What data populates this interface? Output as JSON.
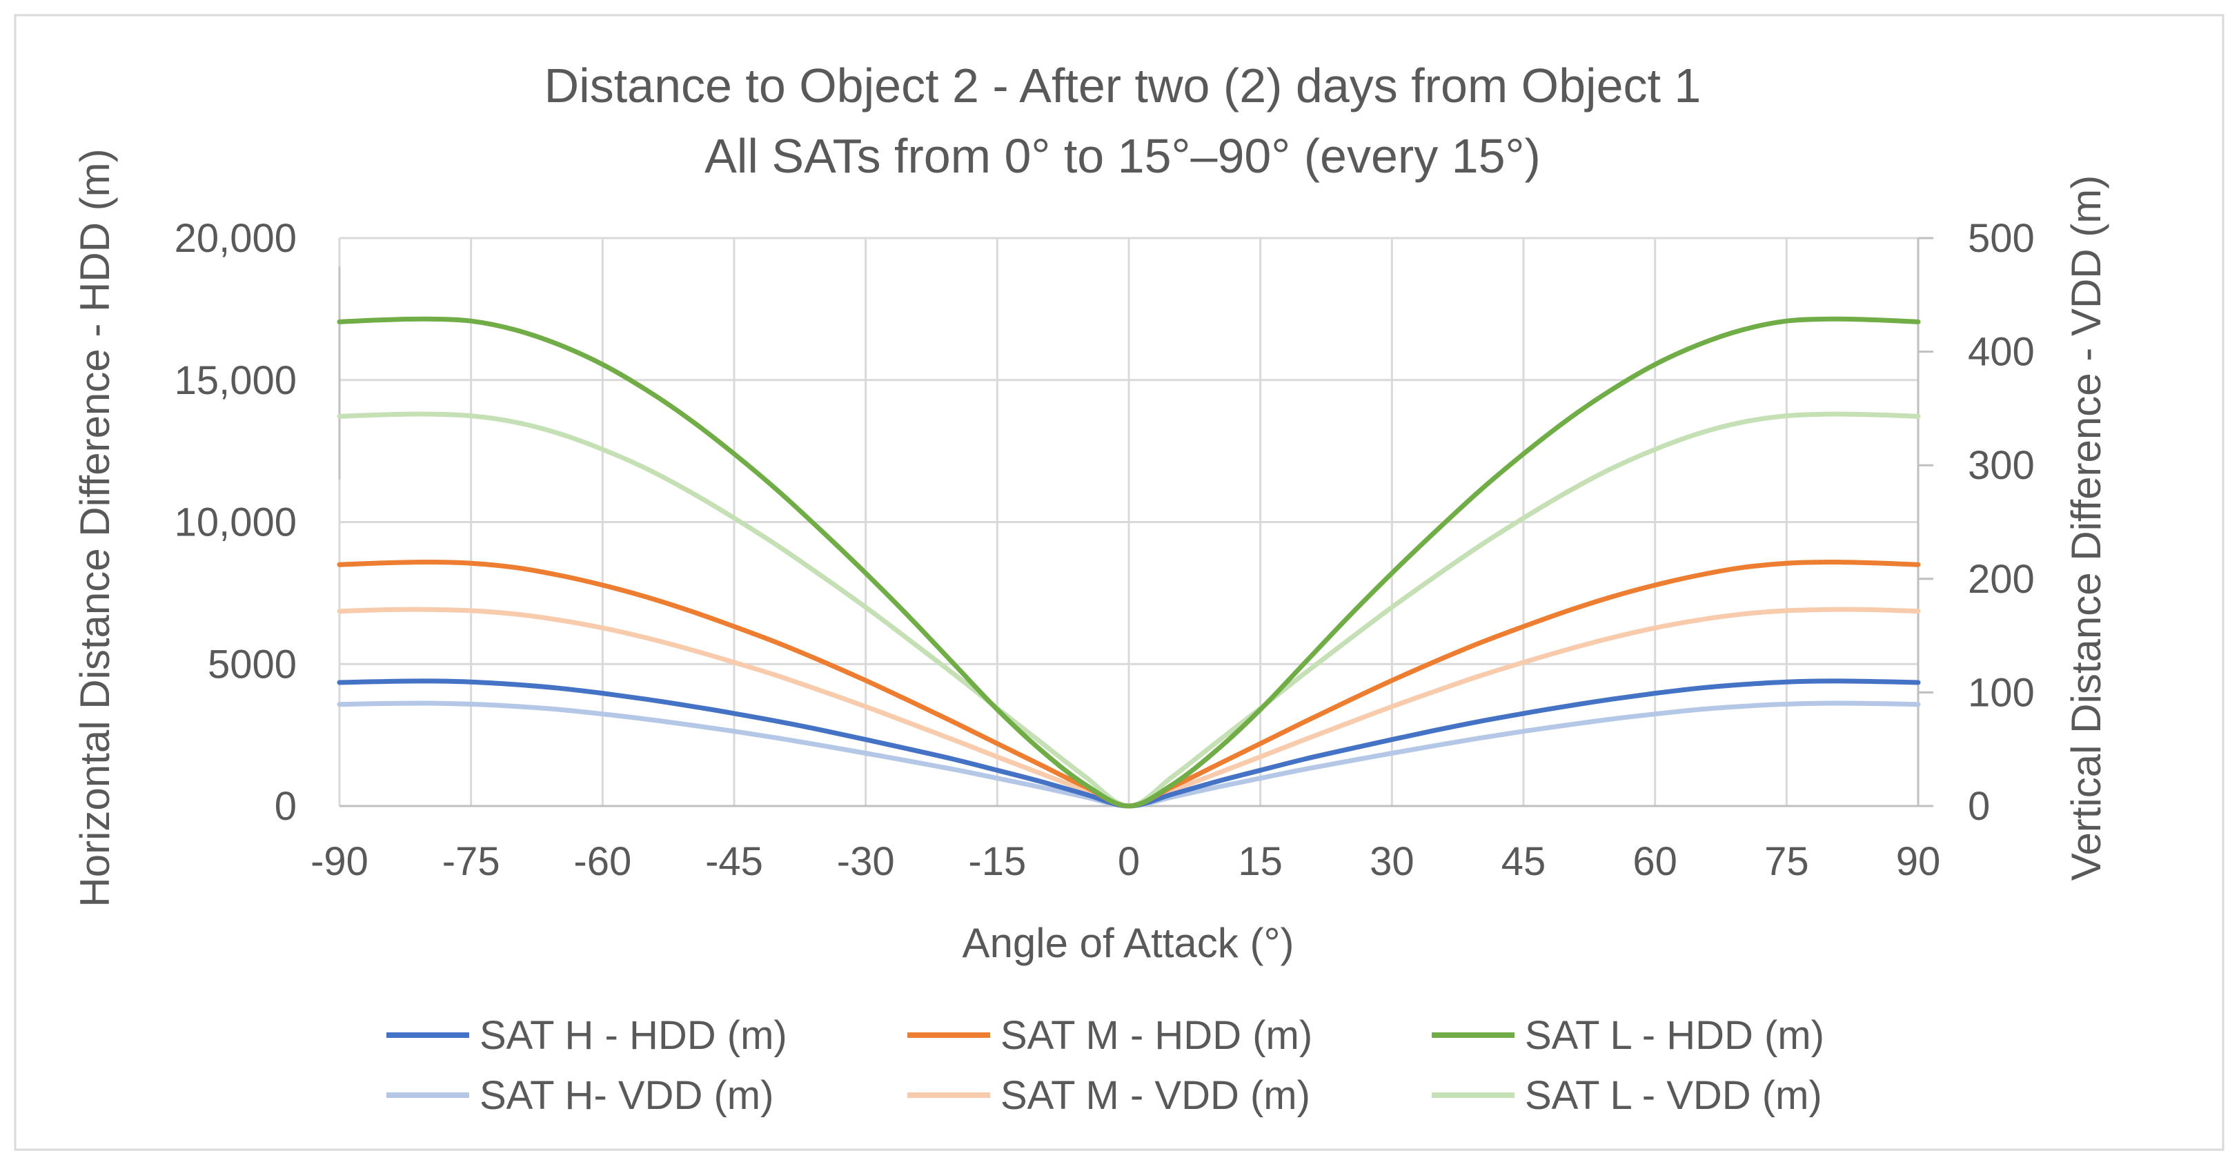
{
  "chart_data": {
    "type": "line",
    "title": [
      "Distance to Object 2 - After two (2) days from Object 1",
      "All SATs from 0° to 15°–90° (every 15°)"
    ],
    "xlabel": "Angle of Attack (°)",
    "ylabel": "Horizontal Distance Difference - HDD (m)",
    "y2label": "Vertical Distance Difference - VDD (m)",
    "xlim": [
      -90,
      90
    ],
    "ylim": [
      0,
      20000
    ],
    "y2lim": [
      0,
      500
    ],
    "x_ticks": [
      "-90",
      "-75",
      "-60",
      "-45",
      "-30",
      "-15",
      "0",
      "15",
      "30",
      "45",
      "60",
      "75",
      "90"
    ],
    "y_ticks": [
      "0",
      "5000",
      "10,000",
      "15,000",
      "20,000"
    ],
    "y2_ticks": [
      "0",
      "100",
      "200",
      "300",
      "400",
      "500"
    ],
    "grid": true,
    "legend_position": "bottom",
    "x": [
      -90,
      -85,
      -80,
      -75,
      -70,
      -65,
      -60,
      -55,
      -50,
      -45,
      -40,
      -35,
      -30,
      -25,
      -20,
      -15,
      -10,
      -5,
      0,
      5,
      10,
      15,
      20,
      25,
      30,
      35,
      40,
      45,
      50,
      55,
      60,
      65,
      70,
      75,
      80,
      85,
      90
    ],
    "series": [
      {
        "name": "SAT H - HDD (m)",
        "axis": "left",
        "color": "#4472c4",
        "values": [
          4350,
          4385,
          4400,
          4370,
          4280,
          4150,
          3970,
          3760,
          3520,
          3260,
          2980,
          2670,
          2340,
          2000,
          1650,
          1260,
          860,
          420,
          0,
          420,
          860,
          1260,
          1650,
          2000,
          2340,
          2670,
          2980,
          3260,
          3520,
          3760,
          3970,
          4150,
          4280,
          4370,
          4400,
          4385,
          4350
        ]
      },
      {
        "name": "SAT M - HDD (m)",
        "axis": "left",
        "color": "#ed7d31",
        "values": [
          8500,
          8560,
          8590,
          8550,
          8400,
          8130,
          7780,
          7360,
          6870,
          6320,
          5740,
          5100,
          4420,
          3700,
          2960,
          2200,
          1440,
          680,
          0,
          680,
          1440,
          2200,
          2960,
          3700,
          4420,
          5100,
          5740,
          6320,
          6870,
          7360,
          7780,
          8130,
          8400,
          8550,
          8590,
          8560,
          8500
        ]
      },
      {
        "name": "SAT L - HDD (m)",
        "axis": "left",
        "color": "#70ad47",
        "values": [
          17050,
          17120,
          17150,
          17080,
          16770,
          16250,
          15550,
          14650,
          13600,
          12400,
          11100,
          9680,
          8200,
          6650,
          5020,
          3400,
          1960,
          760,
          0,
          760,
          1960,
          3400,
          5020,
          6650,
          8200,
          9680,
          11100,
          12400,
          13600,
          14650,
          15550,
          16250,
          16770,
          17080,
          17150,
          17120,
          17050
        ]
      },
      {
        "name": "SAT H- VDD (m)",
        "axis": "right",
        "color": "#b4c7e7",
        "values": [
          89.5,
          90.2,
          90.5,
          89.7,
          87.8,
          85.0,
          81.0,
          76.5,
          71.3,
          65.8,
          59.8,
          53.3,
          46.5,
          39.5,
          32.3,
          24.5,
          16.5,
          8.0,
          0,
          8.0,
          16.5,
          24.5,
          32.3,
          39.5,
          46.5,
          53.3,
          59.8,
          65.8,
          71.3,
          76.5,
          81.0,
          85.0,
          87.8,
          89.7,
          90.5,
          90.2,
          89.5
        ]
      },
      {
        "name": "SAT M - VDD (m)",
        "axis": "right",
        "color": "#f8cbad",
        "values": [
          171.5,
          172.8,
          173.0,
          172.0,
          169.0,
          163.8,
          156.8,
          148.0,
          137.8,
          126.5,
          114.5,
          101.3,
          87.5,
          73.0,
          58.3,
          43.3,
          28.5,
          13.8,
          0,
          13.8,
          28.5,
          43.3,
          58.3,
          73.0,
          87.5,
          101.3,
          114.5,
          126.5,
          137.8,
          148.0,
          156.8,
          163.8,
          169.0,
          172.0,
          173.0,
          172.8,
          171.5
        ]
      },
      {
        "name": "SAT L - VDD (m)",
        "axis": "right",
        "color": "#c5e0b4",
        "values": [
          343,
          344.5,
          345,
          343.5,
          338,
          328,
          314,
          297,
          276.5,
          253.5,
          229,
          202.5,
          175,
          146,
          116.5,
          86,
          56,
          26,
          0,
          26,
          56,
          86,
          116.5,
          146,
          175,
          202.5,
          229,
          253.5,
          276.5,
          297,
          314,
          328,
          338,
          343.5,
          345,
          344.5,
          343
        ]
      }
    ]
  }
}
